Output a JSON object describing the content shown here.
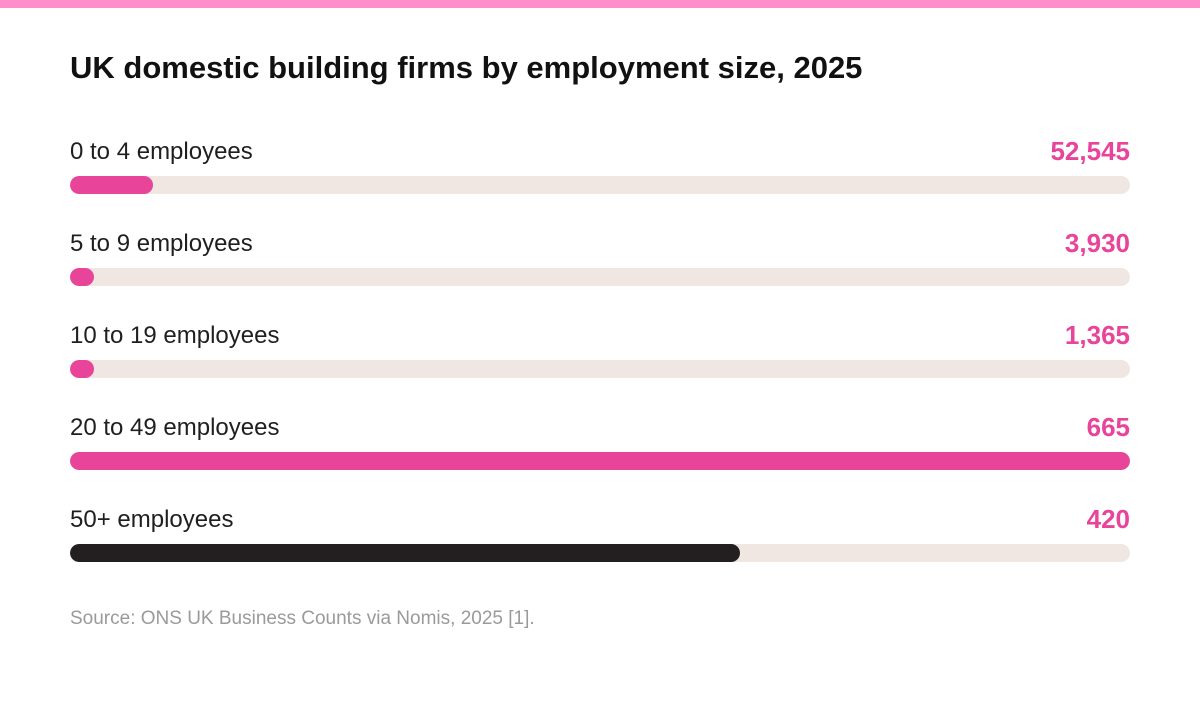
{
  "colors": {
    "accent_bar": "#ff8fcb",
    "highlight": "#e8449a",
    "dark": "#231f20",
    "track": "#f0e7e3"
  },
  "chart_data": {
    "type": "bar",
    "orientation": "horizontal",
    "title": "UK domestic building firms by employment size, 2025",
    "categories": [
      "0 to 4 employees",
      "5 to 9 employees",
      "10 to 19 employees",
      "20 to 49 employees",
      "50+ employees"
    ],
    "values": [
      52545,
      3930,
      1365,
      665,
      420
    ],
    "value_labels": [
      "52,545",
      "3,930",
      "1,365",
      "665",
      "420"
    ],
    "bar_fill_fractions": [
      0.078,
      0.023,
      0.023,
      1.0,
      0.632
    ],
    "bar_colors": [
      "#e8449a",
      "#e8449a",
      "#e8449a",
      "#e8449a",
      "#231f20"
    ],
    "value_colors": [
      "#e8449a",
      "#e8449a",
      "#e8449a",
      "#e8449a",
      "#e8449a"
    ],
    "grid": false,
    "source": "Source: ONS UK Business Counts via Nomis, 2025 [1]."
  }
}
